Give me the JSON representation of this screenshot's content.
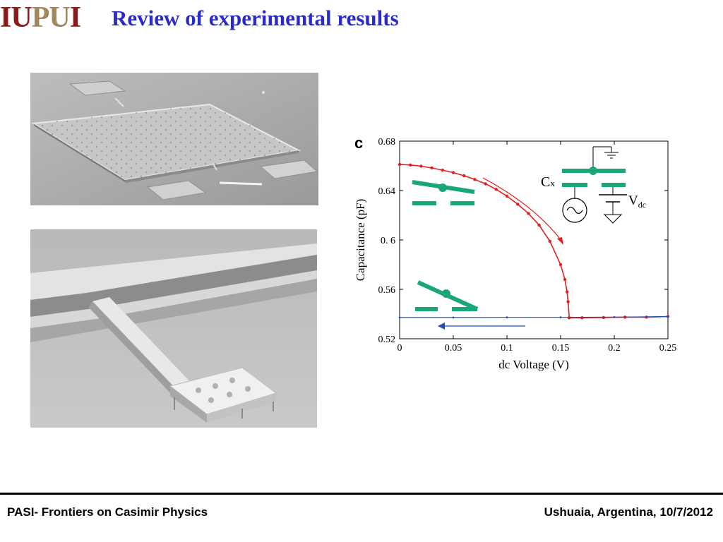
{
  "header": {
    "logo_iu": "IU",
    "logo_pu": "PU",
    "logo_i": "I",
    "title": "Review of experimental results"
  },
  "footer": {
    "left": "PASI- Frontiers on Casimir Physics",
    "right": "Ushuaia, Argentina, 10/7/2012"
  },
  "colors": {
    "title_blue": "#2b2bcc",
    "logo_red": "#8b1a1a",
    "logo_gold": "#a3895a",
    "sweep_up": "#e02020",
    "sweep_down": "#2050b0",
    "electrode": "#1aa67a"
  },
  "chart_data": {
    "type": "line",
    "panel_label": "c",
    "xlabel": "dc Voltage (V)",
    "ylabel": "Capacitance (pF)",
    "xlim": [
      0,
      0.25
    ],
    "ylim": [
      0.52,
      0.68
    ],
    "xticks": [
      0,
      0.05,
      0.1,
      0.15,
      0.2,
      0.25
    ],
    "xtick_labels": [
      "0",
      "0.05",
      "0.1",
      "0.15",
      "0.2",
      "0.25"
    ],
    "yticks": [
      0.52,
      0.56,
      0.6,
      0.64,
      0.68
    ],
    "ytick_labels": [
      "0.52",
      "0.56",
      "0. 6",
      "0.64",
      "0.68"
    ],
    "grid": false,
    "series": [
      {
        "direction": "increasing voltage",
        "color": "#e02020",
        "x": [
          0,
          0.01,
          0.02,
          0.03,
          0.04,
          0.05,
          0.06,
          0.07,
          0.08,
          0.09,
          0.1,
          0.11,
          0.12,
          0.13,
          0.14,
          0.15,
          0.154,
          0.156,
          0.157,
          0.158,
          0.17,
          0.19,
          0.21,
          0.23,
          0.25
        ],
        "y": [
          0.6612,
          0.6607,
          0.6597,
          0.6583,
          0.6565,
          0.6545,
          0.652,
          0.649,
          0.6455,
          0.641,
          0.6355,
          0.629,
          0.6215,
          0.612,
          0.599,
          0.58,
          0.568,
          0.558,
          0.55,
          0.537,
          0.537,
          0.5372,
          0.5375,
          0.5375,
          0.538
        ]
      },
      {
        "direction": "decreasing voltage",
        "color": "#2050b0",
        "x": [
          0,
          0.05,
          0.1,
          0.15,
          0.2,
          0.25
        ],
        "y": [
          0.5372,
          0.5372,
          0.5373,
          0.5373,
          0.5375,
          0.538
        ]
      }
    ],
    "annotations": {
      "cx_label": "C",
      "cx_sub": "x",
      "vdc_label": "V",
      "vdc_sub": "dc"
    }
  }
}
